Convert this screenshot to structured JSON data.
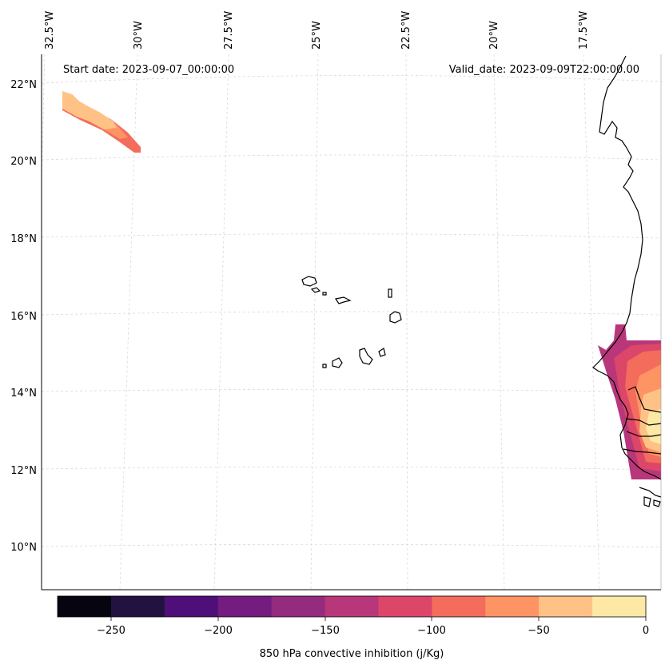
{
  "map": {
    "start_label": "Start date: 2023-09-07_00:00:00",
    "valid_label": "Valid_date: 2023-09-09T22:00:00.00",
    "lon_labels": [
      "32.5°W",
      "30°W",
      "27.5°W",
      "25°W",
      "22.5°W",
      "20°W",
      "17.5°W"
    ],
    "lat_labels": [
      "22°N",
      "20°N",
      "18°N",
      "16°N",
      "14°N",
      "12°N",
      "10°N"
    ]
  },
  "colorbar": {
    "label": "850 hPa convective inhibition (j/Kg)",
    "tick_labels": [
      "−250",
      "−200",
      "−150",
      "−100",
      "−50",
      "0"
    ],
    "colors": [
      "#05040f",
      "#211240",
      "#4e0f79",
      "#741c7f",
      "#952b7e",
      "#b8377a",
      "#db4669",
      "#f36c5c",
      "#fe9364",
      "#fec287",
      "#fde8a5"
    ]
  }
}
